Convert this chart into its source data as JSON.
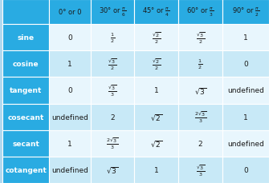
{
  "header_row": [
    "0° or 0",
    "30° or $\\frac{\\pi}{6}$",
    "45° or $\\frac{\\pi}{4}$",
    "60° or $\\frac{\\pi}{3}$",
    "90° or $\\frac{\\pi}{2}$"
  ],
  "row_labels": [
    "sine",
    "cosine",
    "tangent",
    "cosecant",
    "secant",
    "cotangent"
  ],
  "table_data": [
    [
      "0",
      "$\\frac{1}{2}$",
      "$\\frac{\\sqrt{2}}{2}$",
      "$\\frac{\\sqrt{3}}{2}$",
      "1"
    ],
    [
      "1",
      "$\\frac{\\sqrt{3}}{2}$",
      "$\\frac{\\sqrt{2}}{2}$",
      "$\\frac{1}{2}$",
      "0"
    ],
    [
      "0",
      "$\\frac{\\sqrt{3}}{3}$",
      "1",
      "$\\sqrt{3}$",
      "undefined"
    ],
    [
      "undefined",
      "2",
      "$\\sqrt{2}$",
      "$\\frac{2\\sqrt{3}}{3}$",
      "1"
    ],
    [
      "1",
      "$\\frac{2\\sqrt{3}}{3}$",
      "$\\sqrt{2}$",
      "2",
      "undefined"
    ],
    [
      "undefined",
      "$\\sqrt{3}$",
      "1",
      "$\\frac{\\sqrt{3}}{3}$",
      "0"
    ]
  ],
  "header_bg": "#29abe2",
  "row_label_bg": "#29abe2",
  "row_even_bg": "#e8f6fd",
  "row_odd_bg": "#c8e9f7",
  "header_text_color": "#1a1a1a",
  "row_label_text_color": "#ffffff",
  "cell_text_color": "#1a1a1a",
  "border_color": "#ffffff",
  "fig_bg": "#f0f0f0"
}
